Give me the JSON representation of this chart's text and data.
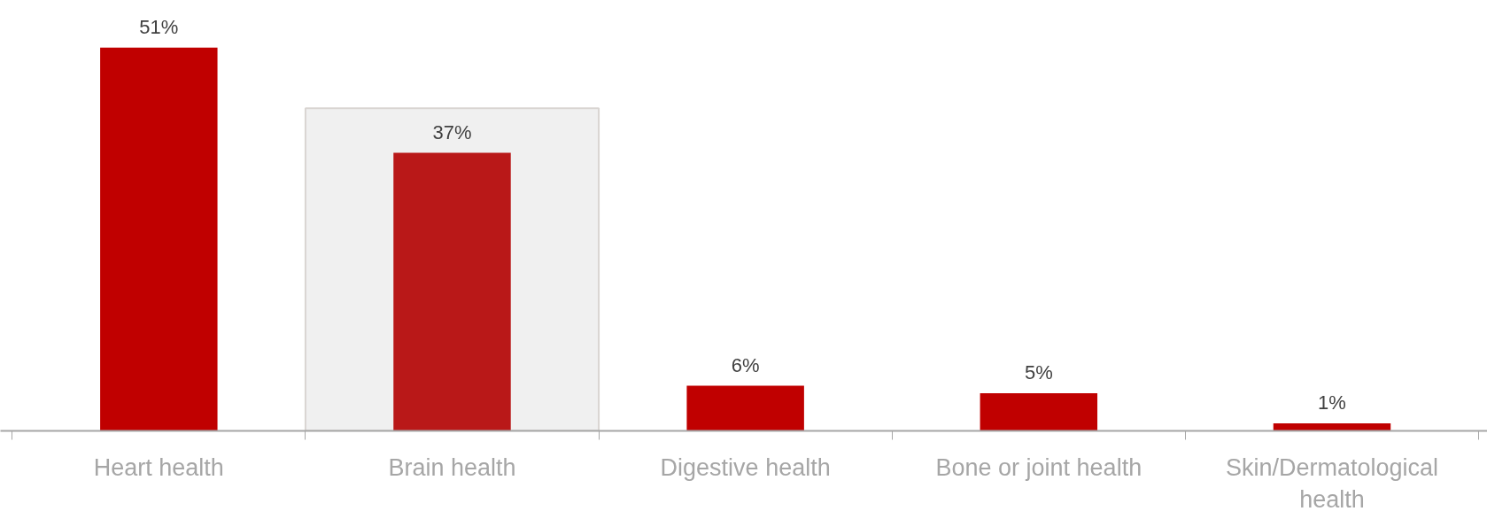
{
  "chart_data": {
    "type": "bar",
    "categories": [
      "Heart health",
      "Brain health",
      "Digestive health",
      "Bone or joint health",
      "Skin/Dermatological health"
    ],
    "values": [
      51,
      37,
      6,
      5,
      1
    ],
    "colors": [
      "#c00000",
      "#b91818",
      "#c00000",
      "#c00000",
      "#c00000"
    ],
    "value_labels": [
      "51%",
      "37%",
      "6%",
      "5%",
      "1%"
    ],
    "bands": [
      {
        "axis": "x",
        "from": "Brain health",
        "to": "Brain health",
        "color": "#f0f0f0"
      }
    ],
    "grid": false
  }
}
